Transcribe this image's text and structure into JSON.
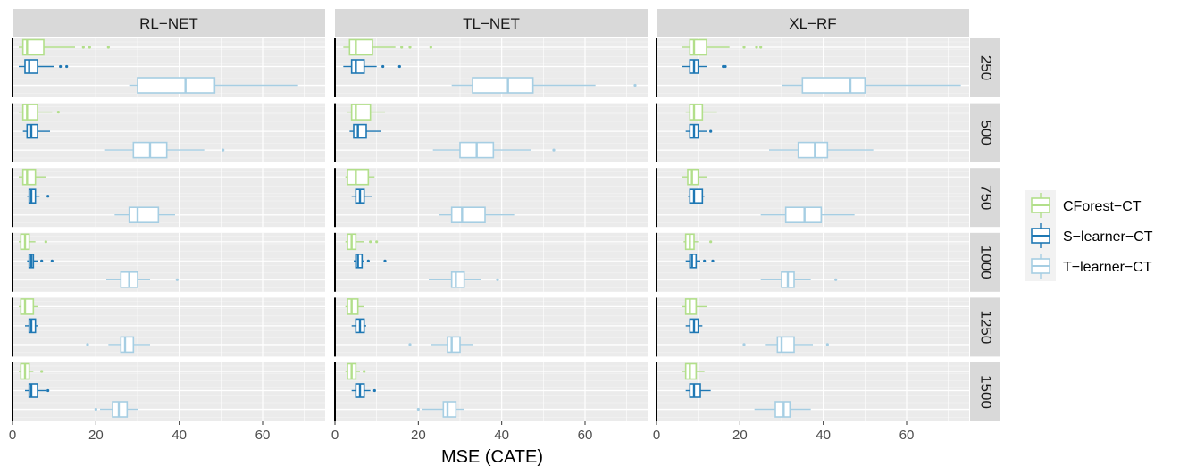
{
  "chart_data": {
    "type": "boxplot",
    "xlabel": "MSE (CATE)",
    "xlim": [
      0,
      75
    ],
    "xticks": [
      0,
      20,
      40,
      60
    ],
    "xtick_labels": [
      "0",
      "20",
      "40",
      "60"
    ],
    "reference_line_x": 0,
    "colors": {
      "panel_bg": "#ebebeb",
      "strip_bg": "#d9d9d9",
      "grid": "#ffffff",
      "CForest-CT": "#b2df8a",
      "S-learner-CT": "#1f78b4",
      "T-learner-CT": "#a6cee3"
    },
    "columns": [
      "RL−NET",
      "TL−NET",
      "XL−RF"
    ],
    "rows": [
      "250",
      "500",
      "750",
      "1000",
      "1250",
      "1500"
    ],
    "legend": [
      "CForest−CT",
      "S−learner−CT",
      "T−learner−CT"
    ],
    "series_keys": [
      "CForest-CT",
      "S-learner-CT",
      "T-learner-CT"
    ],
    "panels": [
      [
        {
          "CForest-CT": {
            "min": 1.5,
            "q1": 2.5,
            "median": 3.5,
            "q3": 7.5,
            "max": 15,
            "outliers": [
              17,
              18.5,
              23
            ]
          },
          "S-learner-CT": {
            "min": 1.5,
            "q1": 3,
            "median": 4,
            "q3": 6,
            "max": 10,
            "outliers": [
              11.5,
              13
            ]
          },
          "T-learner-CT": {
            "min": 28,
            "q1": 30,
            "median": 41.5,
            "q3": 48.5,
            "max": 68.5,
            "outliers": []
          }
        },
        {
          "CForest-CT": {
            "min": 1.5,
            "q1": 2.5,
            "median": 3.5,
            "q3": 6,
            "max": 9.5,
            "outliers": [
              11
            ]
          },
          "S-learner-CT": {
            "min": 2.5,
            "q1": 3.5,
            "median": 4.5,
            "q3": 6,
            "max": 9,
            "outliers": []
          },
          "T-learner-CT": {
            "min": 22,
            "q1": 29,
            "median": 33,
            "q3": 37,
            "max": 46,
            "outliers": [
              50.5
            ]
          }
        },
        {
          "CForest-CT": {
            "min": 1.5,
            "q1": 2.5,
            "median": 3.5,
            "q3": 5.5,
            "max": 8,
            "outliers": []
          },
          "S-learner-CT": {
            "min": 3.5,
            "q1": 4,
            "median": 4.5,
            "q3": 5.5,
            "max": 6.5,
            "outliers": [
              8.5
            ]
          },
          "T-learner-CT": {
            "min": 24.5,
            "q1": 28,
            "median": 30,
            "q3": 35,
            "max": 39,
            "outliers": []
          }
        },
        {
          "CForest-CT": {
            "min": 1.5,
            "q1": 2,
            "median": 3,
            "q3": 4,
            "max": 5.5,
            "outliers": [
              8
            ]
          },
          "S-learner-CT": {
            "min": 3.5,
            "q1": 4,
            "median": 4.5,
            "q3": 5,
            "max": 6,
            "outliers": [
              7,
              9.5
            ]
          },
          "T-learner-CT": {
            "min": 22.5,
            "q1": 26,
            "median": 28,
            "q3": 30,
            "max": 33,
            "outliers": [
              39.5
            ]
          }
        },
        {
          "CForest-CT": {
            "min": 1.5,
            "q1": 2,
            "median": 3,
            "q3": 5,
            "max": 6,
            "outliers": []
          },
          "S-learner-CT": {
            "min": 3,
            "q1": 4,
            "median": 4.5,
            "q3": 5.5,
            "max": 6,
            "outliers": []
          },
          "T-learner-CT": {
            "min": 23,
            "q1": 26,
            "median": 27,
            "q3": 29,
            "max": 33,
            "outliers": [
              18
            ]
          }
        },
        {
          "CForest-CT": {
            "min": 1.5,
            "q1": 2,
            "median": 3,
            "q3": 4,
            "max": 5,
            "outliers": [
              7
            ]
          },
          "S-learner-CT": {
            "min": 3,
            "q1": 4,
            "median": 4.5,
            "q3": 6,
            "max": 8,
            "outliers": [
              8.5
            ]
          },
          "T-learner-CT": {
            "min": 21,
            "q1": 24,
            "median": 25.5,
            "q3": 27.5,
            "max": 30,
            "outliers": [
              20
            ]
          }
        }
      ],
      [
        {
          "CForest-CT": {
            "min": 2,
            "q1": 3.5,
            "median": 5,
            "q3": 9,
            "max": 14.5,
            "outliers": [
              16,
              18,
              23
            ]
          },
          "S-learner-CT": {
            "min": 2,
            "q1": 4,
            "median": 5,
            "q3": 7,
            "max": 10,
            "outliers": [
              11.5,
              15.5
            ]
          },
          "T-learner-CT": {
            "min": 28,
            "q1": 33,
            "median": 41.5,
            "q3": 47.5,
            "max": 62.5,
            "outliers": [
              72
            ]
          }
        },
        {
          "CForest-CT": {
            "min": 3,
            "q1": 4,
            "median": 5,
            "q3": 8.5,
            "max": 12,
            "outliers": []
          },
          "S-learner-CT": {
            "min": 3.5,
            "q1": 4.5,
            "median": 5.5,
            "q3": 7.5,
            "max": 11,
            "outliers": []
          },
          "T-learner-CT": {
            "min": 23.5,
            "q1": 30,
            "median": 34,
            "q3": 38,
            "max": 47,
            "outliers": [
              52.5
            ]
          }
        },
        {
          "CForest-CT": {
            "min": 2.5,
            "q1": 3,
            "median": 5,
            "q3": 8,
            "max": 9.5,
            "outliers": []
          },
          "S-learner-CT": {
            "min": 4,
            "q1": 5,
            "median": 6,
            "q3": 7,
            "max": 9,
            "outliers": []
          },
          "T-learner-CT": {
            "min": 25,
            "q1": 28,
            "median": 30.5,
            "q3": 36,
            "max": 43,
            "outliers": []
          }
        },
        {
          "CForest-CT": {
            "min": 2.5,
            "q1": 3,
            "median": 4,
            "q3": 5,
            "max": 7,
            "outliers": [
              8.5,
              10
            ]
          },
          "S-learner-CT": {
            "min": 4.5,
            "q1": 5,
            "median": 5.5,
            "q3": 6.5,
            "max": 7,
            "outliers": [
              8,
              12
            ]
          },
          "T-learner-CT": {
            "min": 22.5,
            "q1": 28,
            "median": 29,
            "q3": 31,
            "max": 35,
            "outliers": [
              39
            ]
          }
        },
        {
          "CForest-CT": {
            "min": 2.5,
            "q1": 3,
            "median": 4,
            "q3": 5.5,
            "max": 7,
            "outliers": []
          },
          "S-learner-CT": {
            "min": 4,
            "q1": 5,
            "median": 6,
            "q3": 7,
            "max": 7.5,
            "outliers": []
          },
          "T-learner-CT": {
            "min": 23,
            "q1": 27,
            "median": 28,
            "q3": 30,
            "max": 33,
            "outliers": [
              18
            ]
          }
        },
        {
          "CForest-CT": {
            "min": 2.5,
            "q1": 3,
            "median": 4,
            "q3": 5,
            "max": 6,
            "outliers": [
              7
            ]
          },
          "S-learner-CT": {
            "min": 4,
            "q1": 5,
            "median": 6,
            "q3": 7,
            "max": 8.5,
            "outliers": [
              9.5
            ]
          },
          "T-learner-CT": {
            "min": 21,
            "q1": 26,
            "median": 27,
            "q3": 29,
            "max": 31,
            "outliers": [
              20
            ]
          }
        }
      ],
      [
        {
          "CForest-CT": {
            "min": 6,
            "q1": 8,
            "median": 9,
            "q3": 12,
            "max": 17.5,
            "outliers": [
              21,
              24,
              25
            ]
          },
          "S-learner-CT": {
            "min": 6,
            "q1": 8,
            "median": 9,
            "q3": 10,
            "max": 12,
            "outliers": [
              16,
              16.5
            ]
          },
          "T-learner-CT": {
            "min": 30,
            "q1": 35,
            "median": 46.5,
            "q3": 50,
            "max": 73,
            "outliers": []
          }
        },
        {
          "CForest-CT": {
            "min": 7,
            "q1": 8,
            "median": 9,
            "q3": 11,
            "max": 14.5,
            "outliers": []
          },
          "S-learner-CT": {
            "min": 7,
            "q1": 8,
            "median": 9,
            "q3": 10,
            "max": 12,
            "outliers": [
              13
            ]
          },
          "T-learner-CT": {
            "min": 27,
            "q1": 34,
            "median": 38,
            "q3": 41,
            "max": 52,
            "outliers": []
          }
        },
        {
          "CForest-CT": {
            "min": 6,
            "q1": 7.5,
            "median": 8.5,
            "q3": 10,
            "max": 12,
            "outliers": []
          },
          "S-learner-CT": {
            "min": 7.5,
            "q1": 8,
            "median": 9,
            "q3": 11,
            "max": 11.5,
            "outliers": []
          },
          "T-learner-CT": {
            "min": 25,
            "q1": 31,
            "median": 35.5,
            "q3": 39.5,
            "max": 47.5,
            "outliers": []
          }
        },
        {
          "CForest-CT": {
            "min": 6.5,
            "q1": 7,
            "median": 8,
            "q3": 9,
            "max": 10,
            "outliers": [
              13
            ]
          },
          "S-learner-CT": {
            "min": 7,
            "q1": 8,
            "median": 8.5,
            "q3": 9.5,
            "max": 10.5,
            "outliers": [
              11.5,
              13.5
            ]
          },
          "T-learner-CT": {
            "min": 25,
            "q1": 30,
            "median": 31.5,
            "q3": 33,
            "max": 37,
            "outliers": [
              43
            ]
          }
        },
        {
          "CForest-CT": {
            "min": 6,
            "q1": 7,
            "median": 8,
            "q3": 9.5,
            "max": 12,
            "outliers": []
          },
          "S-learner-CT": {
            "min": 7,
            "q1": 8,
            "median": 9,
            "q3": 10,
            "max": 11,
            "outliers": []
          },
          "T-learner-CT": {
            "min": 26,
            "q1": 29,
            "median": 30,
            "q3": 33,
            "max": 37.5,
            "outliers": [
              21,
              41
            ]
          }
        },
        {
          "CForest-CT": {
            "min": 6,
            "q1": 7,
            "median": 8,
            "q3": 9.5,
            "max": 11.5,
            "outliers": []
          },
          "S-learner-CT": {
            "min": 7,
            "q1": 8,
            "median": 9,
            "q3": 10.5,
            "max": 13,
            "outliers": []
          },
          "T-learner-CT": {
            "min": 23.5,
            "q1": 28.5,
            "median": 30.5,
            "q3": 32,
            "max": 37,
            "outliers": []
          }
        }
      ]
    ]
  }
}
